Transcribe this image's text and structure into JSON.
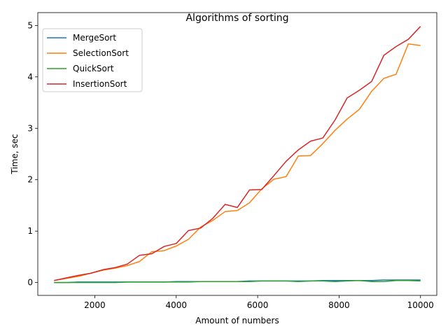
{
  "chart_data": {
    "type": "line",
    "title": "Algorithms of sorting",
    "xlabel": "Amount of numbers",
    "ylabel": "Time, sec",
    "xlim": [
      600,
      10400
    ],
    "ylim": [
      -0.25,
      5.25
    ],
    "xticks": [
      2000,
      4000,
      6000,
      8000,
      10000
    ],
    "yticks": [
      0,
      1,
      2,
      3,
      4,
      5
    ],
    "grid": false,
    "legend": "top-left",
    "x": [
      1000,
      1300,
      1600,
      1900,
      2200,
      2500,
      2800,
      3100,
      3400,
      3700,
      4000,
      4300,
      4600,
      4900,
      5200,
      5500,
      5800,
      6100,
      6400,
      6700,
      7000,
      7300,
      7600,
      7900,
      8200,
      8500,
      8800,
      9100,
      9400,
      9700,
      10000
    ],
    "series": [
      {
        "name": "MergeSort",
        "color": "#1f77b4",
        "values": [
          0.0,
          0.0,
          0.01,
          0.01,
          0.01,
          0.01,
          0.01,
          0.01,
          0.01,
          0.01,
          0.02,
          0.02,
          0.02,
          0.02,
          0.02,
          0.02,
          0.03,
          0.03,
          0.03,
          0.03,
          0.03,
          0.03,
          0.04,
          0.04,
          0.04,
          0.04,
          0.04,
          0.05,
          0.05,
          0.05,
          0.05
        ]
      },
      {
        "name": "SelectionSort",
        "color": "#ff7f0e",
        "values": [
          0.04,
          0.08,
          0.12,
          0.18,
          0.24,
          0.28,
          0.33,
          0.41,
          0.6,
          0.62,
          0.71,
          0.84,
          1.08,
          1.21,
          1.38,
          1.4,
          1.55,
          1.82,
          2.01,
          2.06,
          2.46,
          2.47,
          2.7,
          2.96,
          3.18,
          3.37,
          3.72,
          3.97,
          4.05,
          4.64,
          4.61
        ]
      },
      {
        "name": "QuickSort",
        "color": "#2ca02c",
        "values": [
          0.0,
          0.0,
          0.0,
          0.0,
          0.0,
          0.0,
          0.01,
          0.01,
          0.01,
          0.01,
          0.01,
          0.01,
          0.02,
          0.02,
          0.02,
          0.02,
          0.02,
          0.03,
          0.03,
          0.03,
          0.02,
          0.03,
          0.03,
          0.02,
          0.03,
          0.04,
          0.02,
          0.02,
          0.04,
          0.04,
          0.03
        ]
      },
      {
        "name": "InsertionSort",
        "color": "#d62728",
        "values": [
          0.04,
          0.09,
          0.14,
          0.18,
          0.25,
          0.29,
          0.36,
          0.53,
          0.56,
          0.7,
          0.76,
          1.01,
          1.06,
          1.25,
          1.52,
          1.46,
          1.8,
          1.81,
          2.08,
          2.36,
          2.58,
          2.75,
          2.81,
          3.16,
          3.59,
          3.74,
          3.91,
          4.42,
          4.59,
          4.73,
          4.98
        ]
      }
    ]
  }
}
